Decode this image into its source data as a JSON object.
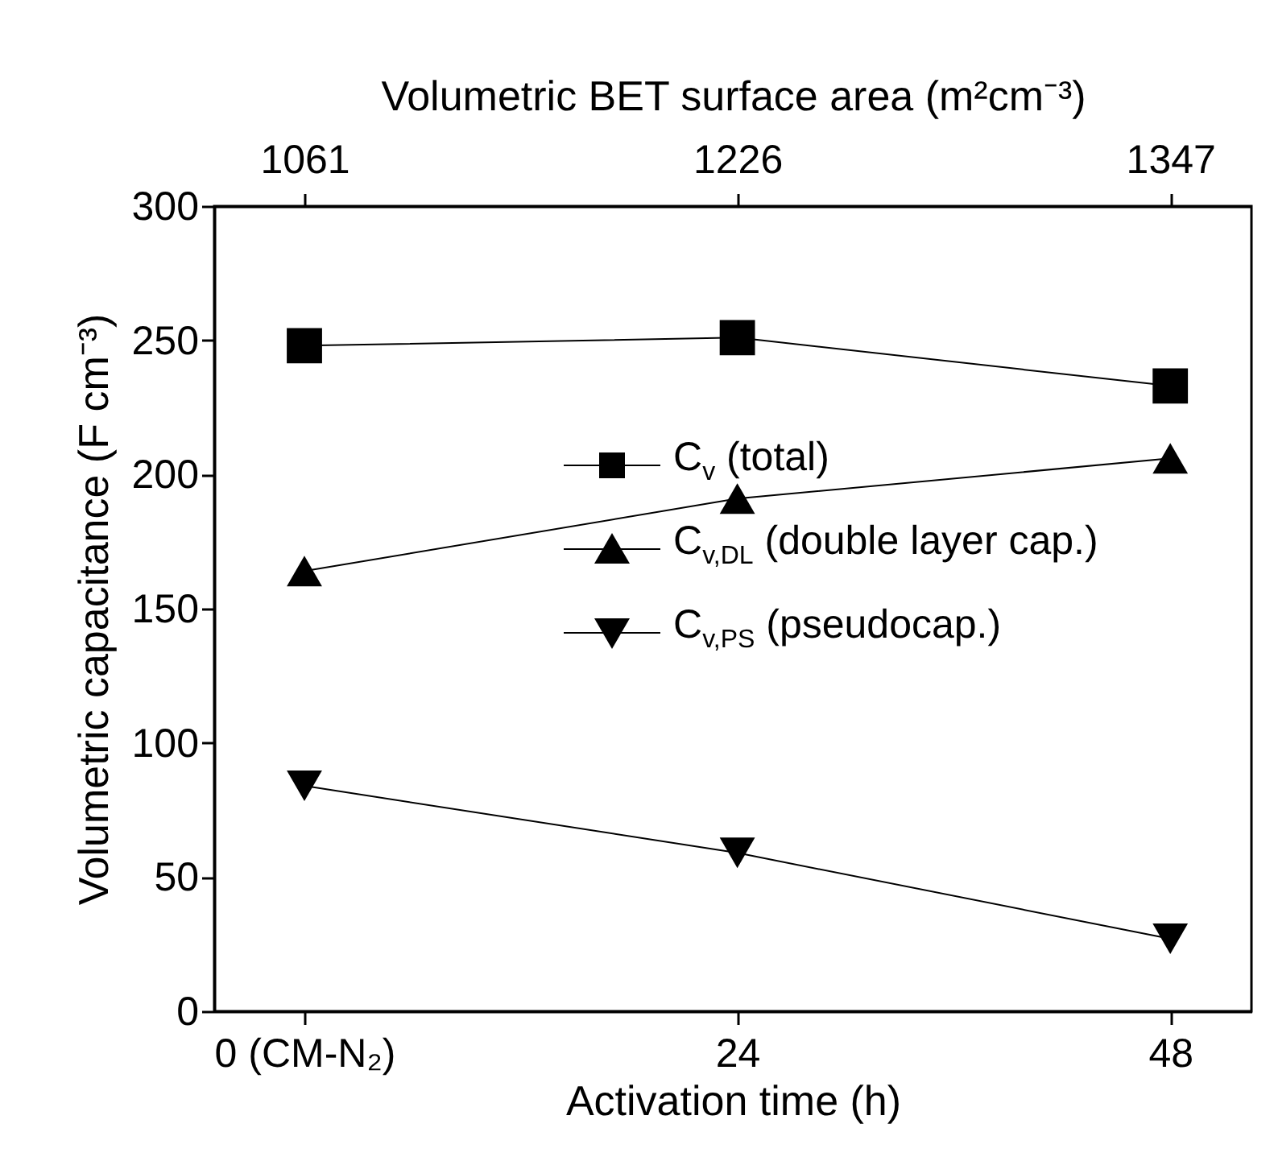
{
  "chart_data": {
    "type": "line",
    "x": [
      0,
      24,
      48
    ],
    "xlim": [
      -5,
      52.5
    ],
    "xticks": [
      {
        "value": 0,
        "label": "0 (CM-N₂)"
      },
      24,
      48
    ],
    "annotations": [
      {
        "text": "1061",
        "x": 0
      },
      {
        "text": "1226",
        "x": 24
      },
      {
        "text": "1347",
        "x": 48
      }
    ],
    "xlabel": "Activation time (h)",
    "x2label": "Volumetric BET surface area (m²cm⁻³)",
    "ylabel": "Volumetric capacitance (F cm⁻³)",
    "ylim": [
      0,
      300
    ],
    "yticks": [
      0,
      50,
      100,
      150,
      200,
      250,
      300
    ],
    "legend": "right",
    "line_style": "solid",
    "series": [
      {
        "name": "C$_{v}$ (total)",
        "color": "#000000",
        "marker": "square",
        "values": [
          248,
          251,
          233
        ]
      },
      {
        "name": "C$_{v,DL}$ (double layer cap.)",
        "color": "#000000",
        "marker": "triangle",
        "values": [
          164,
          191,
          206
        ]
      },
      {
        "name": "C$_{v,PS}$ (pseudocap.)",
        "color": "#000000",
        "marker": "triangle-down",
        "values": [
          84,
          59,
          27
        ]
      }
    ]
  }
}
